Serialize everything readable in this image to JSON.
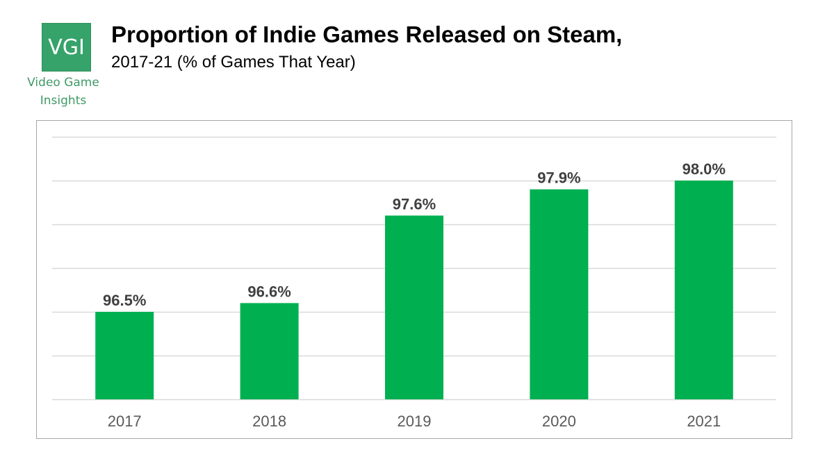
{
  "logo": {
    "mark": "VGI",
    "caption_line1": "Video Game",
    "caption_line2": "Insights",
    "color": "#36a36a"
  },
  "header": {
    "title": "Proportion of Indie Games Released on Steam,",
    "subtitle": "2017-21 (% of Games That Year)"
  },
  "chart_data": {
    "type": "bar",
    "title": "Proportion of Indie Games Released on Steam,",
    "subtitle": "2017-21 (% of Games That Year)",
    "categories": [
      "2017",
      "2018",
      "2019",
      "2020",
      "2021"
    ],
    "values": [
      96.5,
      96.6,
      97.6,
      97.9,
      98.0
    ],
    "data_labels": [
      "96.5%",
      "96.6%",
      "97.6%",
      "97.9%",
      "98.0%"
    ],
    "xlabel": "",
    "ylabel": "",
    "ylim": [
      95.5,
      98.5
    ],
    "y_gridlines": [
      95.5,
      96.0,
      96.5,
      97.0,
      97.5,
      98.0,
      98.5
    ],
    "y_tick_labels_shown": false,
    "grid": true,
    "legend": "none",
    "bar_color": "#00b050",
    "label_color": "#404040",
    "tick_label_color": "#595959",
    "gridline_color": "#d9d9d9"
  }
}
